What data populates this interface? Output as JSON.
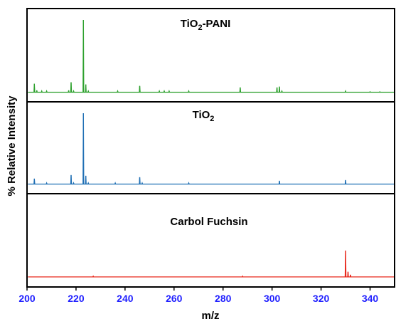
{
  "chart_data": {
    "type": "line",
    "xlabel": "m/z",
    "ylabel": "% Relative Intensity",
    "xlim": [
      200,
      350
    ],
    "x_ticks": [
      200,
      220,
      240,
      260,
      280,
      300,
      320,
      340
    ],
    "tick_label_color": "#1f1fff",
    "panels": [
      {
        "label_parts": [
          "TiO",
          "2",
          "-PANI"
        ],
        "color": "#2ca02c",
        "ylim": [
          0,
          100
        ],
        "baseline": 1.5,
        "peaks": [
          [
            203,
            13
          ],
          [
            204,
            4
          ],
          [
            206,
            3
          ],
          [
            208,
            3
          ],
          [
            217,
            4
          ],
          [
            218,
            15
          ],
          [
            219,
            3
          ],
          [
            223,
            100
          ],
          [
            224,
            12
          ],
          [
            225,
            3
          ],
          [
            237,
            3
          ],
          [
            246,
            10
          ],
          [
            254,
            3
          ],
          [
            256,
            3
          ],
          [
            258,
            3
          ],
          [
            266,
            3
          ],
          [
            287,
            8
          ],
          [
            302,
            8
          ],
          [
            303,
            9
          ],
          [
            304,
            3
          ],
          [
            330,
            3
          ],
          [
            340,
            2
          ],
          [
            344,
            2
          ]
        ]
      },
      {
        "label_parts": [
          "TiO",
          "2"
        ],
        "color": "#1f6fb4",
        "ylim": [
          0,
          100
        ],
        "baseline": 1.5,
        "peaks": [
          [
            203,
            9
          ],
          [
            208,
            3
          ],
          [
            218,
            14
          ],
          [
            219,
            3
          ],
          [
            223,
            100
          ],
          [
            224,
            13
          ],
          [
            225,
            3
          ],
          [
            236,
            3
          ],
          [
            246,
            11
          ],
          [
            247,
            3
          ],
          [
            266,
            3
          ],
          [
            303,
            6
          ],
          [
            330,
            7
          ]
        ]
      },
      {
        "label_parts": [
          "Carbol Fuchsin"
        ],
        "color": "#e8291c",
        "ylim": [
          0,
          100
        ],
        "baseline": 2,
        "peaks": [
          [
            227,
            3
          ],
          [
            288,
            3
          ],
          [
            330,
            38
          ],
          [
            331,
            9
          ],
          [
            332,
            5
          ]
        ]
      }
    ]
  }
}
